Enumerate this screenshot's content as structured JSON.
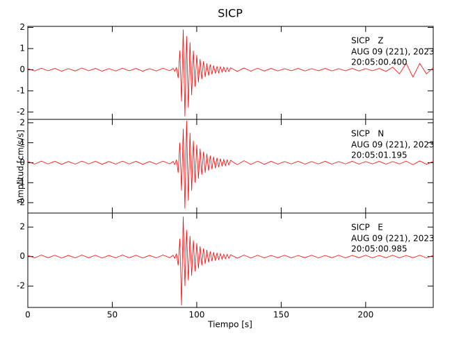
{
  "title": "SICP",
  "xlabel": "Tiempo [s]",
  "ylabel": "Amplitud [cm/s/s]",
  "chart_data": [
    {
      "type": "line",
      "color": "#ff0000",
      "station": "SICP   Z",
      "date": "AUG 09 (221), 2023",
      "time": "20:05:00.400",
      "x": [
        0,
        4,
        8,
        12,
        16,
        20,
        24,
        28,
        32,
        36,
        40,
        44,
        48,
        52,
        56,
        60,
        64,
        68,
        72,
        76,
        80,
        84,
        86,
        87,
        88,
        89,
        90,
        91,
        92,
        93,
        94,
        95,
        96,
        97,
        98,
        99,
        100,
        101,
        102,
        103,
        104,
        105,
        106,
        107,
        108,
        109,
        110,
        111,
        112,
        113,
        114,
        115,
        116,
        117,
        118,
        119,
        120,
        124,
        128,
        132,
        136,
        140,
        144,
        148,
        152,
        156,
        160,
        164,
        168,
        172,
        176,
        180,
        184,
        188,
        192,
        196,
        200,
        204,
        208,
        212,
        216,
        220,
        224,
        228,
        232,
        236,
        240
      ],
      "values": [
        0.05,
        -0.06,
        0.07,
        -0.05,
        0.06,
        -0.07,
        0.05,
        -0.06,
        0.08,
        -0.05,
        0.06,
        -0.07,
        0.05,
        -0.06,
        0.07,
        -0.05,
        0.06,
        -0.07,
        0.05,
        -0.06,
        0.07,
        -0.05,
        0.06,
        -0.08,
        0.1,
        -0.4,
        0.9,
        -1.5,
        1.9,
        -2.2,
        1.6,
        -1.8,
        1.3,
        -1.2,
        0.9,
        -0.8,
        0.7,
        -0.6,
        0.5,
        -0.45,
        0.4,
        -0.35,
        0.3,
        -0.28,
        0.25,
        -0.22,
        0.2,
        -0.18,
        0.16,
        -0.15,
        0.14,
        -0.12,
        0.12,
        -0.1,
        0.1,
        -0.09,
        0.09,
        -0.08,
        0.08,
        -0.07,
        0.07,
        -0.06,
        0.06,
        -0.06,
        0.05,
        -0.05,
        0.06,
        -0.06,
        0.05,
        -0.05,
        0.06,
        -0.06,
        0.05,
        -0.05,
        0.06,
        -0.06,
        0.05,
        -0.05,
        0.06,
        -0.08,
        0.12,
        -0.2,
        0.3,
        -0.35,
        0.3,
        -0.2,
        0.1
      ],
      "xlim": [
        0,
        240
      ],
      "xticks": [
        0,
        50,
        100,
        150,
        200
      ],
      "ylim": [
        -2.35,
        2.05
      ],
      "yticks": [
        -2,
        -1,
        0,
        1,
        2
      ]
    },
    {
      "type": "line",
      "color": "#ff0000",
      "station": "SICP   N",
      "date": "AUG 09 (221), 2023",
      "time": "20:05:01.195",
      "x": [
        0,
        4,
        8,
        12,
        16,
        20,
        24,
        28,
        32,
        36,
        40,
        44,
        48,
        52,
        56,
        60,
        64,
        68,
        72,
        76,
        80,
        84,
        86,
        87,
        88,
        89,
        90,
        91,
        92,
        93,
        94,
        95,
        96,
        97,
        98,
        99,
        100,
        101,
        102,
        103,
        104,
        105,
        106,
        107,
        108,
        109,
        110,
        111,
        112,
        113,
        114,
        115,
        116,
        117,
        118,
        119,
        120,
        124,
        128,
        132,
        136,
        140,
        144,
        148,
        152,
        156,
        160,
        164,
        168,
        172,
        176,
        180,
        184,
        188,
        192,
        196,
        200,
        204,
        208,
        212,
        216,
        220,
        224,
        228,
        232,
        236,
        240
      ],
      "values": [
        0.06,
        -0.07,
        0.08,
        -0.06,
        0.07,
        -0.08,
        0.06,
        -0.07,
        0.08,
        -0.06,
        0.07,
        -0.08,
        0.06,
        -0.07,
        0.08,
        -0.06,
        0.07,
        -0.08,
        0.06,
        -0.07,
        0.08,
        -0.06,
        0.07,
        -0.1,
        0.15,
        -0.5,
        1.0,
        -1.4,
        1.7,
        -2.3,
        2.1,
        -1.9,
        1.5,
        -1.4,
        1.1,
        -1.0,
        0.9,
        -0.8,
        0.7,
        -0.6,
        0.55,
        -0.5,
        0.45,
        -0.4,
        0.35,
        -0.32,
        0.3,
        -0.28,
        0.25,
        -0.22,
        0.2,
        -0.18,
        0.16,
        -0.15,
        0.14,
        -0.12,
        0.12,
        -0.1,
        0.1,
        -0.09,
        0.08,
        -0.08,
        0.07,
        -0.07,
        0.06,
        -0.06,
        0.07,
        -0.07,
        0.06,
        -0.06,
        0.07,
        -0.07,
        0.06,
        -0.06,
        0.07,
        -0.07,
        0.06,
        -0.06,
        0.07,
        -0.07,
        0.06,
        -0.06,
        0.08,
        -0.1,
        0.09,
        -0.08,
        0.07
      ],
      "xlim": [
        0,
        240
      ],
      "xticks": [
        0,
        50,
        100,
        150,
        200
      ],
      "ylim": [
        -2.52,
        2.17
      ],
      "yticks": [
        -2,
        -1,
        0,
        1,
        2
      ]
    },
    {
      "type": "line",
      "color": "#ff0000",
      "station": "SICP   E",
      "date": "AUG 09 (221), 2023",
      "time": "20:05:00.985",
      "x": [
        0,
        4,
        8,
        12,
        16,
        20,
        24,
        28,
        32,
        36,
        40,
        44,
        48,
        52,
        56,
        60,
        64,
        68,
        72,
        76,
        80,
        84,
        86,
        87,
        88,
        89,
        90,
        91,
        92,
        93,
        94,
        95,
        96,
        97,
        98,
        99,
        100,
        101,
        102,
        103,
        104,
        105,
        106,
        107,
        108,
        109,
        110,
        111,
        112,
        113,
        114,
        115,
        116,
        117,
        118,
        119,
        120,
        124,
        128,
        132,
        136,
        140,
        144,
        148,
        152,
        156,
        160,
        164,
        168,
        172,
        176,
        180,
        184,
        188,
        192,
        196,
        200,
        204,
        208,
        212,
        216,
        220,
        224,
        228,
        232,
        236,
        240
      ],
      "values": [
        0.08,
        -0.09,
        0.1,
        -0.08,
        0.09,
        -0.1,
        0.08,
        -0.09,
        0.1,
        -0.08,
        0.09,
        -0.1,
        0.08,
        -0.09,
        0.1,
        -0.08,
        0.09,
        -0.1,
        0.08,
        -0.09,
        0.1,
        -0.08,
        0.09,
        -0.12,
        0.2,
        -0.6,
        1.2,
        -3.3,
        2.7,
        -2.0,
        1.8,
        -1.6,
        1.4,
        -1.3,
        1.1,
        -1.0,
        0.9,
        -0.8,
        0.7,
        -0.6,
        0.55,
        -0.5,
        0.45,
        -0.4,
        0.35,
        -0.32,
        0.3,
        -0.28,
        0.25,
        -0.22,
        0.2,
        -0.18,
        0.16,
        -0.15,
        0.14,
        -0.12,
        0.12,
        -0.11,
        0.1,
        -0.1,
        0.09,
        -0.09,
        0.08,
        -0.08,
        0.09,
        -0.09,
        0.08,
        -0.08,
        0.09,
        -0.09,
        0.08,
        -0.08,
        0.09,
        -0.09,
        0.08,
        -0.08,
        0.09,
        -0.09,
        0.08,
        -0.08,
        0.09,
        -0.09,
        0.08,
        -0.08,
        0.09,
        -0.09,
        0.08
      ],
      "xlim": [
        0,
        240
      ],
      "xticks": [
        0,
        50,
        100,
        150,
        200
      ],
      "ylim": [
        -3.45,
        2.95
      ],
      "yticks": [
        -2,
        0,
        2
      ]
    }
  ]
}
